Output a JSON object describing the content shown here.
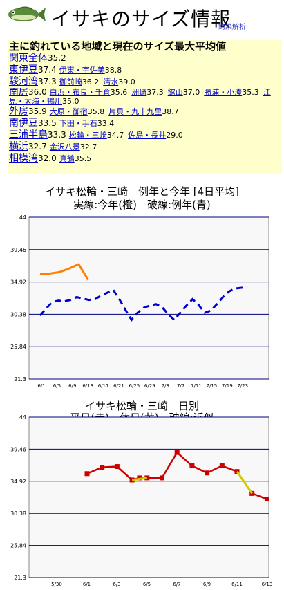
{
  "header": {
    "title": "イサキのサイズ情報",
    "analysis_link": "釣果解析",
    "fish_icon": "fish-icon"
  },
  "panel": {
    "heading": "主に釣れている地域と現在のサイズ最大平均値",
    "regions": [
      {
        "name": "関東全体",
        "value": "35.2",
        "subs": []
      },
      {
        "name": "東伊豆",
        "value": "37.4",
        "subs": [
          {
            "name": "伊東・宇佐美",
            "value": "38.8"
          }
        ]
      },
      {
        "name": "駿河湾",
        "value": "37.3",
        "subs": [
          {
            "name": "御前崎",
            "value": "36.2"
          },
          {
            "name": "清水",
            "value": "39.0"
          }
        ]
      },
      {
        "name": "南房",
        "value": "36.0",
        "subs": [
          {
            "name": "白浜・布良・千倉",
            "value": "35.6"
          },
          {
            "name": "洲崎",
            "value": "37.3"
          },
          {
            "name": "館山",
            "value": "37.0"
          },
          {
            "name": "勝浦・小湊",
            "value": "35.3"
          },
          {
            "name": "江見・太海・鴨川",
            "value": "35.0"
          }
        ]
      },
      {
        "name": "外房",
        "value": "35.9",
        "subs": [
          {
            "name": "大原・御宿",
            "value": "35.8"
          },
          {
            "name": "片貝・九十九里",
            "value": "38.7"
          }
        ]
      },
      {
        "name": "南伊豆",
        "value": "33.5",
        "subs": [
          {
            "name": "下田・手石",
            "value": "33.4"
          }
        ]
      },
      {
        "name": "三浦半島",
        "value": "33.3",
        "subs": [
          {
            "name": "松輪・三崎",
            "value": "34.7"
          },
          {
            "name": "佐島・長井",
            "value": "29.0"
          }
        ]
      },
      {
        "name": "横浜",
        "value": "32.7",
        "subs": [
          {
            "name": "金沢八景",
            "value": "32.7"
          }
        ]
      },
      {
        "name": "相模湾",
        "value": "32.0",
        "subs": [
          {
            "name": "真鶴",
            "value": "35.5"
          }
        ]
      }
    ]
  },
  "chart_data": [
    {
      "type": "line",
      "title": "イサキ松輪・三崎　例年と今年 [4日平均]",
      "subtitle": "実線:今年(橙)　破線:例年(青)",
      "ylim": [
        21.3,
        44
      ],
      "yticks": [
        "44",
        "39.46",
        "34.92",
        "30.38",
        "25.84",
        "21.3"
      ],
      "xticks": [
        "6/1",
        "6/5",
        "6/9",
        "6/13",
        "6/17",
        "6/21",
        "6/25",
        "6/29",
        "7/3",
        "7/7",
        "7/11",
        "7/15",
        "7/19",
        "7/23"
      ],
      "series": [
        {
          "color": "#ff8000",
          "style": "solid",
          "x": [
            0,
            3,
            6,
            9,
            12,
            15
          ],
          "y": [
            36.0,
            36.1,
            36.3,
            36.8,
            37.4,
            35.2
          ]
        },
        {
          "color": "#0000cc",
          "style": "dashed",
          "x": [
            0,
            4,
            8,
            12,
            16,
            20,
            24,
            28,
            32,
            36,
            40,
            44,
            48,
            52,
            56,
            60,
            64,
            68,
            72,
            76,
            80,
            84,
            88,
            92,
            96,
            100,
            104,
            108,
            112,
            116,
            120,
            124,
            128,
            132,
            136
          ],
          "y": [
            30.2,
            31.2,
            32.1,
            32.3,
            32.2,
            32.4,
            32.8,
            32.6,
            32.4,
            32.5,
            33.0,
            33.4,
            33.8,
            32.5,
            31.0,
            29.6,
            30.6,
            31.3,
            31.6,
            31.8,
            31.4,
            30.4,
            29.6,
            30.6,
            31.6,
            32.5,
            31.7,
            30.6,
            30.9,
            31.8,
            32.8,
            33.6,
            34.0,
            34.1,
            34.2
          ]
        }
      ]
    },
    {
      "type": "line",
      "title": "イサキ松輪・三崎　日別",
      "subtitle": "平日(赤)　休日(黄)　破線:近似",
      "ylim": [
        21.3,
        44
      ],
      "yticks": [
        "44",
        "39.46",
        "34.92",
        "30.38",
        "25.84",
        "21.3"
      ],
      "xticks": [
        "5/30",
        "6/1",
        "6/3",
        "6/5",
        "6/7",
        "6/9",
        "6/11",
        "6/13"
      ],
      "series": [
        {
          "color": "#cc0000",
          "style": "solid",
          "points": [
            [
              "6/1",
              36.0
            ],
            [
              "6/2",
              36.9
            ],
            [
              "6/3",
              37.0
            ],
            [
              "6/4",
              35.1
            ],
            [
              "6/4.5",
              35.4
            ],
            [
              "6/5",
              35.4
            ],
            [
              "6/6",
              35.4
            ],
            [
              "6/7",
              39.0
            ],
            [
              "6/8",
              37.1
            ],
            [
              "6/9",
              36.1
            ],
            [
              "6/10",
              37.1
            ],
            [
              "6/11",
              36.3
            ],
            [
              "6/12",
              33.2
            ],
            [
              "6/13",
              32.4
            ]
          ]
        },
        {
          "color": "#cccc00",
          "style": "solid",
          "points": [
            [
              "6/4",
              35.1
            ],
            [
              "6/5",
              35.4
            ],
            [
              "6/11",
              36.3
            ],
            [
              "6/12",
              33.2
            ]
          ]
        }
      ]
    }
  ]
}
